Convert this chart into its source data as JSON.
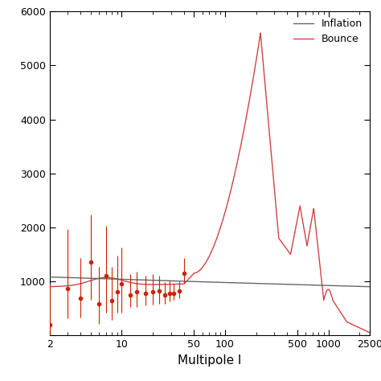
{
  "xlabel": "Multipole l",
  "xlim": [
    2,
    2500
  ],
  "ylim": [
    0,
    6000
  ],
  "yticks": [
    0,
    1000,
    2000,
    3000,
    4000,
    5000,
    6000
  ],
  "xticks": [
    2,
    10,
    50,
    100,
    500,
    1000,
    2500
  ],
  "xtick_labels": [
    "2",
    "10",
    "50",
    "100",
    "500",
    "1000",
    "2500"
  ],
  "legend_labels": [
    "Inflation",
    "Bounce"
  ],
  "inflation_color": "#666666",
  "bounce_color": "#cc4444",
  "data_color": "#cc2200",
  "data_points_l": [
    2,
    3,
    4,
    5,
    6,
    7,
    8,
    9,
    10,
    12,
    14,
    17,
    20,
    23,
    26,
    29,
    32,
    36,
    40
  ],
  "data_points_cl": [
    200,
    870,
    680,
    1350,
    590,
    1100,
    640,
    800,
    950,
    750,
    800,
    780,
    800,
    820,
    750,
    780,
    780,
    820,
    1150
  ],
  "data_errors_lo": [
    200,
    550,
    350,
    700,
    380,
    680,
    360,
    380,
    530,
    230,
    280,
    230,
    230,
    230,
    160,
    160,
    130,
    130,
    180
  ],
  "data_errors_hi": [
    750,
    1100,
    750,
    880,
    680,
    920,
    630,
    680,
    670,
    380,
    380,
    330,
    330,
    280,
    230,
    230,
    180,
    180,
    280
  ]
}
